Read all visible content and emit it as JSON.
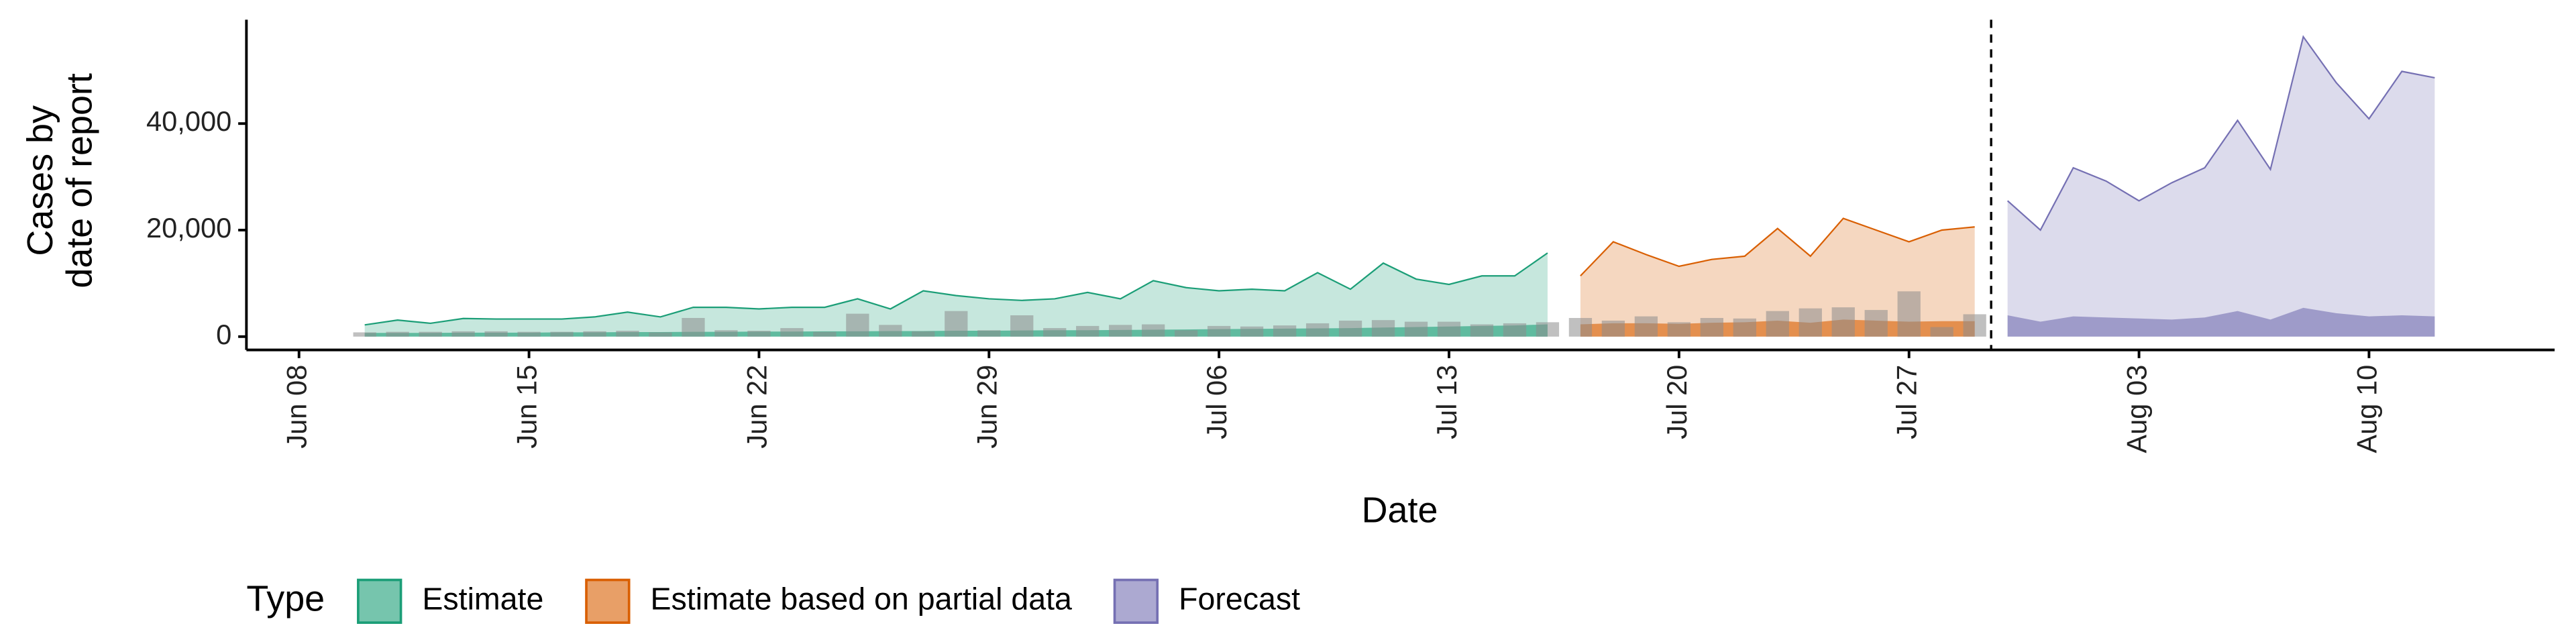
{
  "chart_data": {
    "type": "area",
    "x_label": "Date",
    "y_label": [
      "Cases by",
      "date of report"
    ],
    "legend_title": "Type",
    "legend_position": "bottom",
    "xlim": [
      "Jun 06",
      "Aug 16"
    ],
    "xticks": [
      "Jun 08",
      "Jun 15",
      "Jun 22",
      "Jun 29",
      "Jul 06",
      "Jul 13",
      "Jul 20",
      "Jul 27",
      "Aug 03",
      "Aug 10"
    ],
    "ylim": [
      -2500,
      59500
    ],
    "yticks": [
      0,
      {
        "value": 20000,
        "label": "20,000"
      },
      {
        "value": 40000,
        "label": "40,000"
      }
    ],
    "reported": {
      "color": "#8c8c8c",
      "x": [
        "Jun 10",
        "Jun 11",
        "Jun 12",
        "Jun 13",
        "Jun 14",
        "Jun 15",
        "Jun 16",
        "Jun 17",
        "Jun 18",
        "Jun 19",
        "Jun 20",
        "Jun 21",
        "Jun 22",
        "Jun 23",
        "Jun 24",
        "Jun 25",
        "Jun 26",
        "Jun 27",
        "Jun 28",
        "Jun 29",
        "Jun 30",
        "Jul 01",
        "Jul 02",
        "Jul 03",
        "Jul 04",
        "Jul 05",
        "Jul 06",
        "Jul 07",
        "Jul 08",
        "Jul 09",
        "Jul 10",
        "Jul 11",
        "Jul 12",
        "Jul 13",
        "Jul 14",
        "Jul 15",
        "Jul 16",
        "Jul 17",
        "Jul 18",
        "Jul 19",
        "Jul 20",
        "Jul 21",
        "Jul 22",
        "Jul 23",
        "Jul 24",
        "Jul 25",
        "Jul 26",
        "Jul 27",
        "Jul 28",
        "Jul 29"
      ],
      "values": [
        800,
        900,
        900,
        1000,
        1000,
        900,
        900,
        1000,
        1100,
        800,
        3500,
        1200,
        1100,
        1600,
        900,
        4300,
        2200,
        1000,
        4800,
        1200,
        4000,
        1600,
        2000,
        2200,
        2300,
        1200,
        2000,
        1900,
        2100,
        2500,
        3000,
        3100,
        2800,
        2800,
        2300,
        2500,
        2700,
        3500,
        3000,
        3800,
        2700,
        3500,
        3400,
        4800,
        5300,
        5500,
        5000,
        8500,
        1800,
        4200
      ]
    },
    "series": [
      {
        "name": "Estimate",
        "color": "#1b9e77",
        "x": [
          "Jun 10",
          "Jun 11",
          "Jun 12",
          "Jun 13",
          "Jun 14",
          "Jun 15",
          "Jun 16",
          "Jun 17",
          "Jun 18",
          "Jun 19",
          "Jun 20",
          "Jun 21",
          "Jun 22",
          "Jun 23",
          "Jun 24",
          "Jun 25",
          "Jun 26",
          "Jun 27",
          "Jun 28",
          "Jun 29",
          "Jun 30",
          "Jul 01",
          "Jul 02",
          "Jul 03",
          "Jul 04",
          "Jul 05",
          "Jul 06",
          "Jul 07",
          "Jul 08",
          "Jul 09",
          "Jul 10",
          "Jul 11",
          "Jul 12",
          "Jul 13",
          "Jul 14",
          "Jul 15",
          "Jul 16"
        ],
        "values": [
          2200,
          3100,
          2500,
          3400,
          3300,
          3300,
          3300,
          3700,
          4600,
          3700,
          5500,
          5500,
          5200,
          5500,
          5500,
          7100,
          5200,
          8600,
          7700,
          7100,
          6800,
          7100,
          8300,
          7100,
          10500,
          9200,
          8600,
          8900,
          8600,
          12000,
          8900,
          13800,
          10800,
          9800,
          11400,
          11400,
          15700
        ],
        "inner_values": [
          700,
          700,
          700,
          750,
          750,
          750,
          800,
          800,
          850,
          850,
          900,
          900,
          950,
          950,
          1000,
          1000,
          1050,
          1050,
          1100,
          1100,
          1150,
          1200,
          1200,
          1250,
          1300,
          1350,
          1400,
          1450,
          1500,
          1550,
          1600,
          1700,
          1800,
          1900,
          2000,
          2100,
          2300
        ]
      },
      {
        "name": "Estimate based on partial data",
        "color": "#d95f02",
        "x": [
          "Jul 17",
          "Jul 18",
          "Jul 19",
          "Jul 20",
          "Jul 21",
          "Jul 22",
          "Jul 23",
          "Jul 24",
          "Jul 25",
          "Jul 26",
          "Jul 27",
          "Jul 28",
          "Jul 29"
        ],
        "values": [
          11400,
          17800,
          15400,
          13200,
          14500,
          15100,
          20300,
          15100,
          22200,
          20000,
          17800,
          20000,
          20600
        ],
        "inner_values": [
          2300,
          2500,
          2500,
          2400,
          2600,
          2700,
          3000,
          2600,
          3200,
          3000,
          2800,
          2900,
          2900
        ]
      },
      {
        "name": "Forecast",
        "color": "#7570b3",
        "x": [
          "Jul 30",
          "Jul 31",
          "Aug 01",
          "Aug 02",
          "Aug 03",
          "Aug 04",
          "Aug 05",
          "Aug 06",
          "Aug 07",
          "Aug 08",
          "Aug 09",
          "Aug 10",
          "Aug 11",
          "Aug 12"
        ],
        "values": [
          25500,
          20000,
          31700,
          29200,
          25500,
          28900,
          31700,
          40600,
          31400,
          56300,
          47700,
          40900,
          49800,
          48600
        ],
        "inner_values": [
          4000,
          2800,
          3800,
          3600,
          3400,
          3200,
          3600,
          4800,
          3200,
          5400,
          4400,
          3800,
          4000,
          3800
        ]
      }
    ]
  }
}
